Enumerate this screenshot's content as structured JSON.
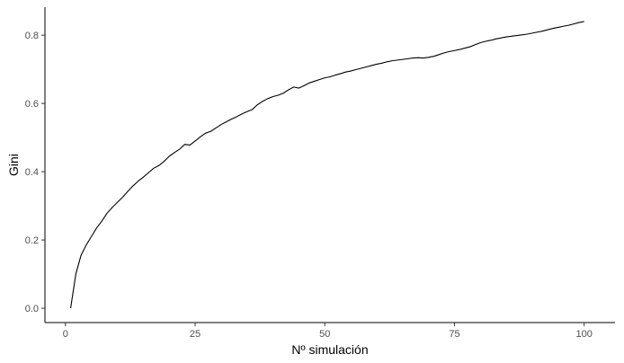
{
  "chart_data": {
    "type": "line",
    "title": "",
    "xlabel": "Nº simulación",
    "ylabel": "Gini",
    "xlim": [
      -3.95,
      105.95
    ],
    "ylim": [
      -0.042,
      0.882
    ],
    "x_ticks": [
      0,
      25,
      50,
      75,
      100
    ],
    "y_ticks": [
      0.0,
      0.2,
      0.4,
      0.6,
      0.8
    ],
    "x_tick_labels": [
      "0",
      "25",
      "50",
      "75",
      "100"
    ],
    "y_tick_labels": [
      "0.0",
      "0.2",
      "0.4",
      "0.6",
      "0.8"
    ],
    "grid": false,
    "legend": "none",
    "line_color": "#000000",
    "series": [
      {
        "x": [
          1,
          2,
          3,
          4,
          5,
          6,
          7,
          8,
          9,
          10,
          11,
          12,
          13,
          14,
          15,
          16,
          17,
          18,
          19,
          20,
          21,
          22,
          23,
          24,
          25,
          26,
          27,
          28,
          29,
          30,
          31,
          32,
          33,
          34,
          35,
          36,
          37,
          38,
          39,
          40,
          41,
          42,
          43,
          44,
          45,
          46,
          47,
          48,
          49,
          50,
          51,
          52,
          53,
          54,
          55,
          56,
          57,
          58,
          59,
          60,
          61,
          62,
          63,
          64,
          65,
          66,
          67,
          68,
          69,
          70,
          71,
          72,
          73,
          74,
          75,
          76,
          77,
          78,
          79,
          80,
          81,
          82,
          83,
          84,
          85,
          86,
          87,
          88,
          89,
          90,
          91,
          92,
          93,
          94,
          95,
          96,
          97,
          98,
          99,
          100
        ],
        "y": [
          0.0,
          0.1,
          0.155,
          0.185,
          0.21,
          0.235,
          0.255,
          0.278,
          0.295,
          0.31,
          0.325,
          0.342,
          0.358,
          0.372,
          0.384,
          0.397,
          0.41,
          0.418,
          0.43,
          0.445,
          0.456,
          0.466,
          0.48,
          0.478,
          0.49,
          0.502,
          0.513,
          0.518,
          0.528,
          0.538,
          0.546,
          0.554,
          0.561,
          0.569,
          0.576,
          0.582,
          0.596,
          0.606,
          0.614,
          0.62,
          0.624,
          0.63,
          0.64,
          0.648,
          0.645,
          0.652,
          0.66,
          0.665,
          0.67,
          0.675,
          0.678,
          0.683,
          0.687,
          0.692,
          0.695,
          0.699,
          0.703,
          0.707,
          0.711,
          0.715,
          0.718,
          0.722,
          0.725,
          0.727,
          0.729,
          0.731,
          0.733,
          0.734,
          0.733,
          0.735,
          0.738,
          0.743,
          0.748,
          0.752,
          0.755,
          0.758,
          0.762,
          0.766,
          0.772,
          0.778,
          0.782,
          0.785,
          0.789,
          0.792,
          0.795,
          0.797,
          0.799,
          0.801,
          0.803,
          0.806,
          0.809,
          0.812,
          0.816,
          0.82,
          0.823,
          0.826,
          0.829,
          0.833,
          0.837,
          0.84
        ]
      }
    ]
  }
}
